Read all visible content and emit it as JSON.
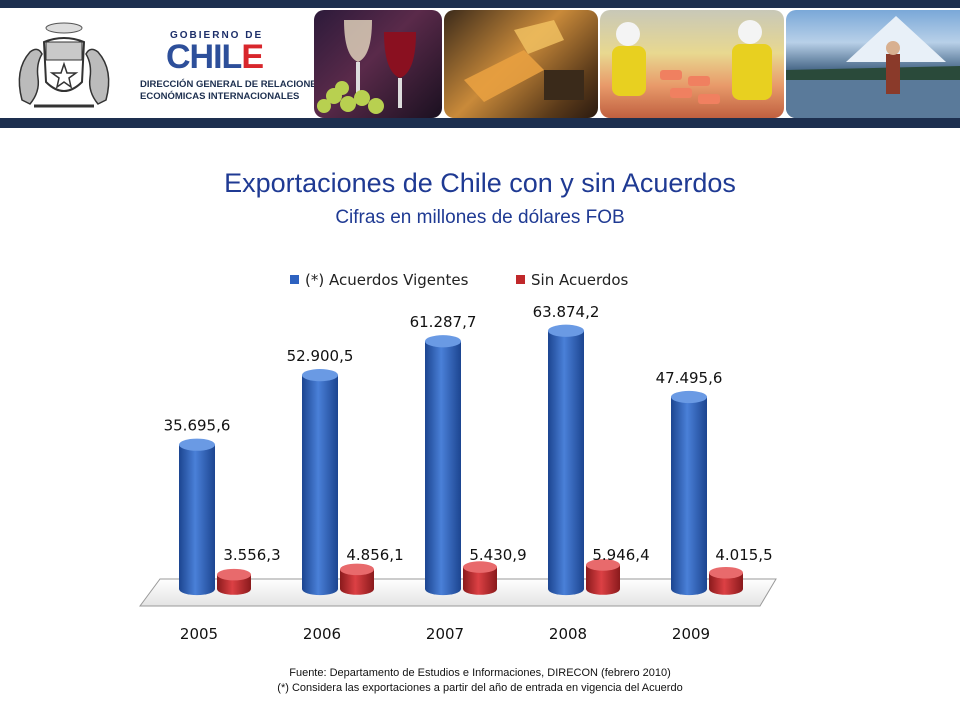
{
  "header": {
    "gov_label": "GOBIERNO DE",
    "chile_main": "CHIL",
    "chile_accent": "E",
    "direccion_line1": "DIRECCIÓN GENERAL DE RELACIONES",
    "direccion_line2": "ECONÓMICAS INTERNACIONALES"
  },
  "chart_data": {
    "type": "bar",
    "title": "Exportaciones de Chile con y sin Acuerdos",
    "subtitle": "Cifras en millones de dólares FOB",
    "categories": [
      "2005",
      "2006",
      "2007",
      "2008",
      "2009"
    ],
    "series": [
      {
        "name": "(*) Acuerdos Vigentes",
        "color": "#2e62c0",
        "values": [
          35695.6,
          52900.5,
          61287.7,
          63874.2,
          47495.6
        ],
        "labels": [
          "35.695,6",
          "52.900,5",
          "61.287,7",
          "63.874,2",
          "47.495,6"
        ]
      },
      {
        "name": "Sin Acuerdos",
        "color": "#c0282a",
        "values": [
          3556.3,
          4856.1,
          5430.9,
          5946.4,
          4015.5
        ],
        "labels": [
          "3.556,3",
          "4.856,1",
          "5.430,9",
          "5.946,4",
          "4.015,5"
        ]
      }
    ],
    "ylim": [
      0,
      70000
    ],
    "legend_position": "top",
    "style": "3d-cylinder",
    "grid": false
  },
  "footer": {
    "source": "Fuente: Departamento de Estudios e Informaciones, DIRECON (febrero 2010)",
    "note": "(*) Considera las exportaciones a partir del año de entrada en vigencia del Acuerdo"
  }
}
